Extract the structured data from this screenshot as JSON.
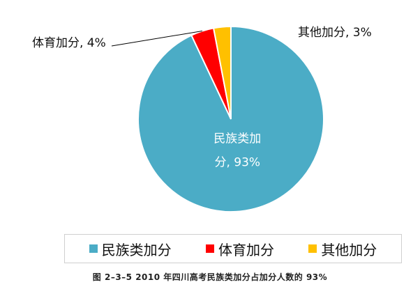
{
  "chart_data": {
    "type": "pie",
    "slices": [
      {
        "label": "民族类加分",
        "value": 93,
        "color": "#4bacc6",
        "label_line1": "民族类加",
        "label_line2": "分, 93%"
      },
      {
        "label": "体育加分",
        "value": 4,
        "color": "#ff0000",
        "data_label": "体育加分, 4%"
      },
      {
        "label": "其他加分",
        "value": 3,
        "color": "#ffc000",
        "data_label": "其他加分, 3%"
      }
    ],
    "legend": [
      "民族类加分",
      "体育加分",
      "其他加分"
    ],
    "legend_position": "bottom"
  },
  "caption": "图 2–3–5  2010 年四川高考民族类加分占加分人数的 93%"
}
